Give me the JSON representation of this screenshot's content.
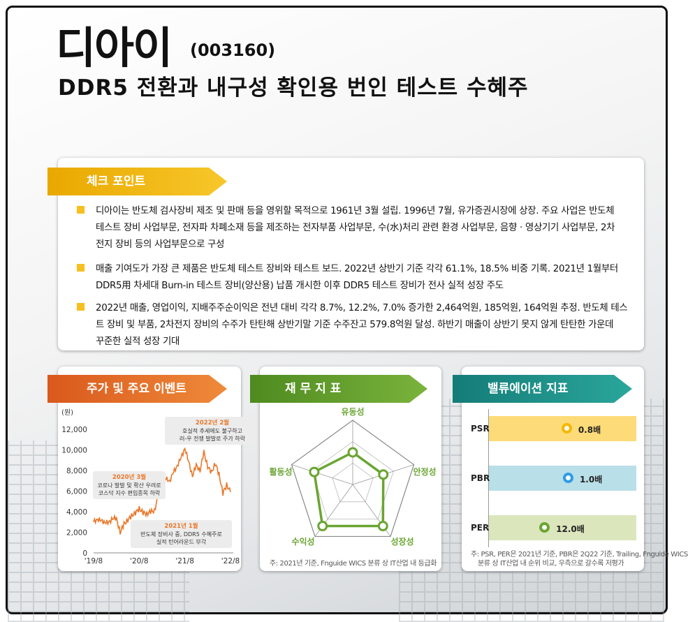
{
  "header": {
    "company": "디아이",
    "code": "(003160)",
    "headline": "DDR5 전환과 내구성 확인용 번인 테스트 수혜주"
  },
  "checkpoint": {
    "tab": "체크 포인트",
    "bullets": [
      [
        "디아이는 반도체 검사장비 제조 및 판매 등을 영위할 목적으로 1961년 3월 설립. 1996년 7월, 유가증권시장에 상장. 주요 사업은 반도체",
        "테스트 장비 사업부문, 전자파 차폐소재 등을 제조하는 전자부품 사업부문, 수(水)처리 관련 환경 사업부문, 음향 · 영상기기 사업부문, 2차",
        "전지 장비 등의 사업부문으로 구성"
      ],
      [
        "매출 기여도가 가장 큰 제품은 반도체 테스트 장비와 테스트 보드. 2022년 상반기 기준 각각 61.1%, 18.5% 비중 기록. 2021년 1월부터",
        "DDR5用 차세대 Burn-in 테스트 장비(양산용) 납품 개시한 이후 DDR5 테스트 장비가 전사 실적 성장 주도"
      ],
      [
        "2022년 매출, 영업이익, 지배주주순이익은 전년 대비 각각 8.7%, 12.2%, 7.0% 증가한 2,464억원, 185억원, 164억원 추정. 반도체 테스",
        "트 장비 및 부품, 2차전지 장비의 수주가 탄탄해 상반기말 기준 수주잔고 579.8억원 달성. 하반기 매출이 상반기 못지 않게 탄탄한 가운데",
        "꾸준한 실적 성장 기대"
      ]
    ],
    "colors": {
      "bullet": "#f7bf1f",
      "tab": "#f0b400"
    }
  },
  "chart_data": [
    {
      "type": "line",
      "title": "주가 및 주요 이벤트",
      "ylabel": "(원)",
      "ylim": [
        0,
        12000
      ],
      "yticks": [
        "12,000",
        "10,000",
        "8,000",
        "6,000",
        "4,000",
        "2,000",
        "0"
      ],
      "xticks": [
        "'19/8",
        "'20/8",
        "'21/8",
        "'22/8"
      ],
      "x": [
        "2019-08",
        "2019-09",
        "2019-10",
        "2019-11",
        "2019-12",
        "2020-01",
        "2020-02",
        "2020-03",
        "2020-04",
        "2020-05",
        "2020-06",
        "2020-07",
        "2020-08",
        "2020-09",
        "2020-10",
        "2020-11",
        "2020-12",
        "2021-01",
        "2021-02",
        "2021-03",
        "2021-04",
        "2021-05",
        "2021-06",
        "2021-07",
        "2021-08",
        "2021-09",
        "2021-10",
        "2021-11",
        "2021-12",
        "2022-01",
        "2022-02",
        "2022-03",
        "2022-04",
        "2022-05",
        "2022-06",
        "2022-07",
        "2022-08"
      ],
      "values": [
        3000,
        3300,
        3100,
        3000,
        2900,
        3400,
        3300,
        2000,
        2800,
        3200,
        3600,
        3900,
        4300,
        3900,
        3800,
        4000,
        4100,
        5500,
        6200,
        7200,
        7000,
        7800,
        8500,
        9200,
        10200,
        8800,
        7500,
        8500,
        8000,
        9800,
        8400,
        7800,
        8700,
        7600,
        5800,
        6600,
        5900
      ],
      "color": "#e8782a",
      "annotations": [
        {
          "date": "2020년 3월",
          "lines": [
            "코로나 발발 및 확산 우려로",
            "코스닥 지수 편입종목 하락"
          ]
        },
        {
          "date": "2021년 1월",
          "lines": [
            "반도체 장비사 중, DDR5 수혜주로",
            "실적 턴어라운드 부각"
          ]
        },
        {
          "date": "2022년 2월",
          "lines": [
            "호실적 추세에도 불구하고",
            "러-우 전쟁 발발로 주가 하락"
          ]
        }
      ]
    },
    {
      "type": "radar",
      "title": "재 무 지 표",
      "axes": [
        "유동성",
        "안정성",
        "성장성",
        "수익성",
        "활동성"
      ],
      "values": [
        0.5,
        0.5,
        0.8,
        0.8,
        0.63
      ],
      "range": [
        0,
        1
      ],
      "color": "#6aa532",
      "note": "주: 2021년 기준, Fnguide WICS 분류 상 IT산업 내 등급화"
    },
    {
      "type": "dot-rank",
      "title": "밸류에이션 지표",
      "categories": [
        "PSR",
        "PBR",
        "PER"
      ],
      "labels": [
        "0.8배",
        "1.0배",
        "12.0배"
      ],
      "values": [
        0.8,
        1.0,
        12.0
      ],
      "rank_position": [
        0.53,
        0.54,
        0.38
      ],
      "bar_colors": [
        "#fddb78",
        "#b9dfe8",
        "#dbe6bd"
      ],
      "dot_colors": [
        "#f5b800",
        "#2f9be8",
        "#6aa532"
      ],
      "note": [
        "주: PSR, PER은 2021년 기준, PBR은 2Q22 기준, Trailing, Fnguide WICS",
        "분류 상 IT산업 내 순위 비교, 우측으로 갈수록 저평가"
      ]
    }
  ],
  "tabs": {
    "stock": "주가 및 주요 이벤트",
    "fin": "재 무 지 표",
    "val": "밸류에이션 지표"
  }
}
